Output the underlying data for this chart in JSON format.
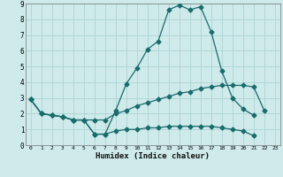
{
  "bg_color": "#ceeaea",
  "grid_color": "#aed4d4",
  "line_color": "#1a6b6b",
  "xlabel": "Humidex (Indice chaleur)",
  "xlim": [
    -0.5,
    23.5
  ],
  "ylim": [
    0,
    9
  ],
  "xticks": [
    0,
    1,
    2,
    3,
    4,
    5,
    6,
    7,
    8,
    9,
    10,
    11,
    12,
    13,
    14,
    15,
    16,
    17,
    18,
    19,
    20,
    21,
    22,
    23
  ],
  "yticks": [
    0,
    1,
    2,
    3,
    4,
    5,
    6,
    7,
    8,
    9
  ],
  "line1_x": [
    0,
    1,
    2,
    3,
    4,
    5,
    6,
    7,
    8,
    9,
    10,
    11,
    12,
    13,
    14,
    15,
    16,
    17,
    18,
    19,
    20,
    21
  ],
  "line1_y": [
    2.9,
    2.0,
    1.9,
    1.8,
    1.6,
    1.6,
    0.7,
    0.7,
    2.2,
    3.9,
    4.9,
    6.1,
    6.6,
    8.6,
    8.9,
    8.6,
    8.8,
    7.2,
    4.7,
    3.0,
    2.3,
    1.9
  ],
  "line2_x": [
    0,
    1,
    2,
    3,
    4,
    5,
    6,
    7,
    8,
    9,
    10,
    11,
    12,
    13,
    14,
    15,
    16,
    17,
    18,
    19,
    20,
    21,
    22,
    23
  ],
  "line2_y": [
    2.9,
    2.0,
    1.9,
    1.8,
    1.6,
    1.6,
    1.6,
    1.6,
    2.0,
    2.2,
    2.5,
    2.7,
    2.9,
    3.1,
    3.3,
    3.4,
    3.6,
    3.7,
    3.8,
    3.8,
    3.8,
    3.7,
    2.2,
    null
  ],
  "line3_x": [
    0,
    1,
    2,
    3,
    4,
    5,
    6,
    7,
    8,
    9,
    10,
    11,
    12,
    13,
    14,
    15,
    16,
    17,
    18,
    19,
    20,
    21,
    22,
    23
  ],
  "line3_y": [
    2.9,
    2.0,
    1.9,
    1.8,
    1.6,
    1.6,
    0.7,
    0.7,
    0.9,
    1.0,
    1.0,
    1.1,
    1.1,
    1.2,
    1.2,
    1.2,
    1.2,
    1.2,
    1.1,
    1.0,
    0.9,
    0.6,
    null,
    null
  ]
}
